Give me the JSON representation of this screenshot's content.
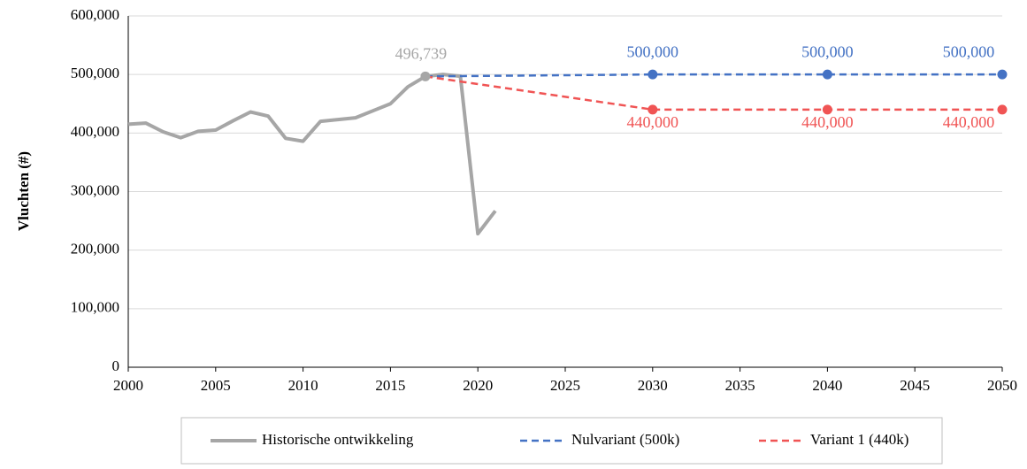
{
  "chart_data": {
    "type": "line",
    "ylabel": "Vluchten (#)",
    "xlim": [
      2000,
      2050
    ],
    "xticks": [
      2000,
      2005,
      2010,
      2015,
      2020,
      2025,
      2030,
      2035,
      2040,
      2045,
      2050
    ],
    "ylim": [
      0,
      600000
    ],
    "yticks": [
      0,
      {
        "value": 100000,
        "label": "100,000"
      },
      {
        "value": 200000,
        "label": "200,000"
      },
      {
        "value": 300000,
        "label": "300,000"
      },
      {
        "value": 400000,
        "label": "400,000"
      },
      {
        "value": 500000,
        "label": "500,000"
      },
      {
        "value": 600000,
        "label": "600,000"
      }
    ],
    "grid": true,
    "legend": "bottom",
    "series": [
      {
        "name": "Historische ontwikkeling",
        "color": "#a6a6a6",
        "dash": false,
        "x": [
          2000,
          2001,
          2002,
          2003,
          2004,
          2005,
          2006,
          2007,
          2008,
          2009,
          2010,
          2011,
          2012,
          2013,
          2014,
          2015,
          2016,
          2017,
          2018,
          2019,
          2020,
          2021
        ],
        "values": [
          415000,
          417000,
          402000,
          392000,
          403000,
          405000,
          421000,
          436000,
          429000,
          391000,
          386000,
          420000,
          423000,
          426000,
          438000,
          450000,
          479000,
          496739,
          500000,
          497000,
          228000,
          267000
        ],
        "value_labels": [
          null,
          null,
          null,
          null,
          null,
          null,
          null,
          null,
          null,
          null,
          null,
          null,
          null,
          null,
          null,
          null,
          null,
          "496,739",
          null,
          null,
          null,
          null
        ]
      },
      {
        "name": "Nulvariant (500k)",
        "color": "#4472c4",
        "dash": true,
        "x": [
          2017,
          2030,
          2040,
          2050
        ],
        "values": [
          496739,
          500000,
          500000,
          500000
        ],
        "value_labels": [
          null,
          "500,000",
          "500,000",
          "500,000"
        ]
      },
      {
        "name": "Variant 1 (440k)",
        "color": "#f05454",
        "dash": true,
        "x": [
          2017,
          2030,
          2040,
          2050
        ],
        "values": [
          496739,
          440000,
          440000,
          440000
        ],
        "value_labels": [
          null,
          "440,000",
          "440,000",
          "440,000"
        ]
      }
    ]
  }
}
